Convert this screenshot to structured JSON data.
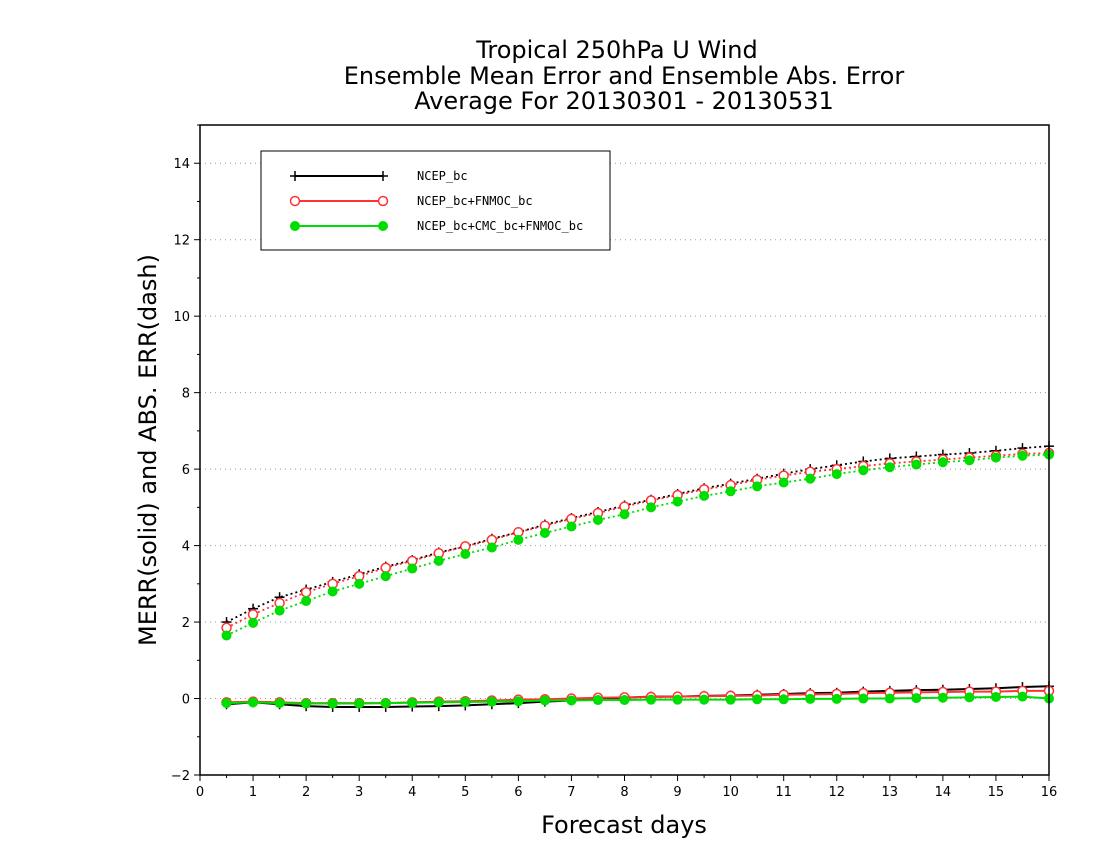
{
  "chart_data": {
    "type": "line",
    "title_lines": [
      "Tropical 250hPa U Wind",
      "Ensemble Mean Error and Ensemble Abs. Error",
      "Average For 20130301 - 20130531"
    ],
    "xlabel": "Forecast days",
    "ylabel": "MERR(solid) and ABS. ERR(dash)",
    "xlim": [
      0,
      16
    ],
    "ylim": [
      -2,
      15
    ],
    "x_ticks": [
      0,
      1,
      2,
      3,
      4,
      5,
      6,
      7,
      8,
      9,
      10,
      11,
      12,
      13,
      14,
      15,
      16
    ],
    "y_ticks": [
      -2,
      0,
      2,
      4,
      6,
      8,
      10,
      12,
      14
    ],
    "grid": "horizontal-dotted",
    "legend_position": "top-left",
    "x": [
      0.5,
      1,
      1.5,
      2,
      2.5,
      3,
      3.5,
      4,
      4.5,
      5,
      5.5,
      6,
      6.5,
      7,
      7.5,
      8,
      8.5,
      9,
      9.5,
      10,
      10.5,
      11,
      11.5,
      12,
      12.5,
      13,
      13.5,
      14,
      14.5,
      15,
      15.5,
      16
    ],
    "series": [
      {
        "name": "NCEP_bc",
        "color": "#000000",
        "marker": "plus",
        "mean_error": [
          -0.15,
          -0.1,
          -0.15,
          -0.2,
          -0.22,
          -0.22,
          -0.22,
          -0.21,
          -0.2,
          -0.18,
          -0.15,
          -0.12,
          -0.08,
          -0.05,
          0.0,
          0.02,
          0.05,
          0.05,
          0.07,
          0.08,
          0.1,
          0.12,
          0.14,
          0.15,
          0.18,
          0.2,
          0.22,
          0.23,
          0.25,
          0.27,
          0.3,
          0.32
        ],
        "abs_error": [
          2.0,
          2.35,
          2.65,
          2.85,
          3.05,
          3.25,
          3.45,
          3.62,
          3.82,
          3.98,
          4.18,
          4.35,
          4.55,
          4.72,
          4.88,
          5.05,
          5.2,
          5.35,
          5.5,
          5.62,
          5.75,
          5.88,
          6.0,
          6.1,
          6.2,
          6.28,
          6.33,
          6.38,
          6.42,
          6.48,
          6.55,
          6.6
        ]
      },
      {
        "name": "NCEP_bc+FNMOC_bc",
        "color": "#ff3333",
        "marker": "open-circle",
        "mean_error": [
          -0.1,
          -0.08,
          -0.1,
          -0.12,
          -0.12,
          -0.12,
          -0.12,
          -0.1,
          -0.08,
          -0.07,
          -0.05,
          -0.03,
          -0.02,
          0.0,
          0.02,
          0.03,
          0.04,
          0.05,
          0.06,
          0.07,
          0.08,
          0.1,
          0.11,
          0.12,
          0.14,
          0.15,
          0.16,
          0.17,
          0.18,
          0.18,
          0.2,
          0.2
        ],
        "abs_error": [
          1.85,
          2.2,
          2.5,
          2.78,
          3.0,
          3.2,
          3.42,
          3.6,
          3.8,
          3.98,
          4.15,
          4.35,
          4.52,
          4.7,
          4.85,
          5.02,
          5.18,
          5.32,
          5.47,
          5.58,
          5.72,
          5.83,
          5.93,
          6.0,
          6.08,
          6.15,
          6.2,
          6.25,
          6.3,
          6.35,
          6.4,
          6.42
        ]
      },
      {
        "name": "NCEP_bc+CMC_bc+FNMOC_bc",
        "color": "#00dd00",
        "marker": "filled-circle",
        "mean_error": [
          -0.12,
          -0.1,
          -0.12,
          -0.13,
          -0.13,
          -0.13,
          -0.12,
          -0.11,
          -0.1,
          -0.09,
          -0.08,
          -0.07,
          -0.05,
          -0.05,
          -0.04,
          -0.04,
          -0.03,
          -0.03,
          -0.03,
          -0.03,
          -0.02,
          -0.02,
          -0.01,
          -0.01,
          0.0,
          0.0,
          0.01,
          0.02,
          0.03,
          0.04,
          0.05,
          0.0
        ],
        "abs_error": [
          1.65,
          1.98,
          2.3,
          2.55,
          2.8,
          3.0,
          3.2,
          3.4,
          3.6,
          3.78,
          3.95,
          4.15,
          4.33,
          4.5,
          4.67,
          4.82,
          5.0,
          5.15,
          5.3,
          5.42,
          5.55,
          5.65,
          5.75,
          5.87,
          5.97,
          6.05,
          6.12,
          6.18,
          6.23,
          6.3,
          6.35,
          6.38
        ]
      }
    ]
  }
}
